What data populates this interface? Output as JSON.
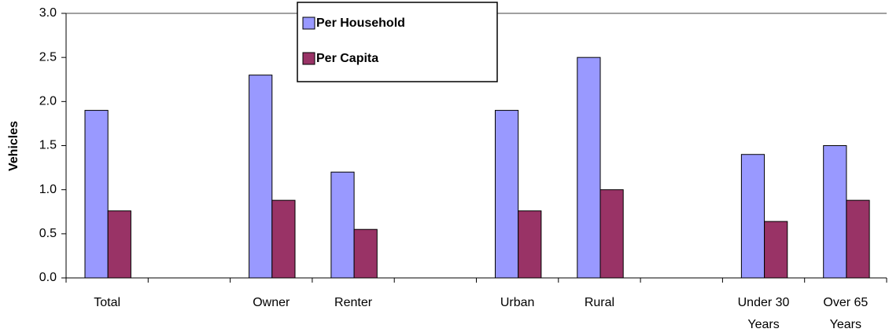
{
  "chart_data": {
    "type": "bar",
    "y_label": "Vehicles",
    "categories": [
      "Total",
      null,
      "Owner",
      "Renter",
      null,
      "Urban",
      "Rural",
      null,
      "Under 30 Years",
      "Over 65 Years"
    ],
    "series": [
      {
        "name": "Per Household",
        "color": "#9999ff",
        "values": [
          1.9,
          null,
          2.3,
          1.2,
          null,
          1.9,
          2.5,
          null,
          1.4,
          1.5
        ]
      },
      {
        "name": "Per Capita",
        "color": "#993366",
        "values": [
          0.76,
          null,
          0.88,
          0.55,
          null,
          0.76,
          1.0,
          null,
          0.64,
          0.88
        ]
      }
    ],
    "ylim": [
      0,
      3
    ],
    "yticks": [
      {
        "value": 0,
        "label": "0.0"
      },
      0.5,
      {
        "value": 1,
        "label": "1.0"
      },
      1.5,
      {
        "value": 2,
        "label": "2.0"
      },
      2.5,
      {
        "value": 3,
        "label": "3.0"
      }
    ],
    "grid": false
  }
}
